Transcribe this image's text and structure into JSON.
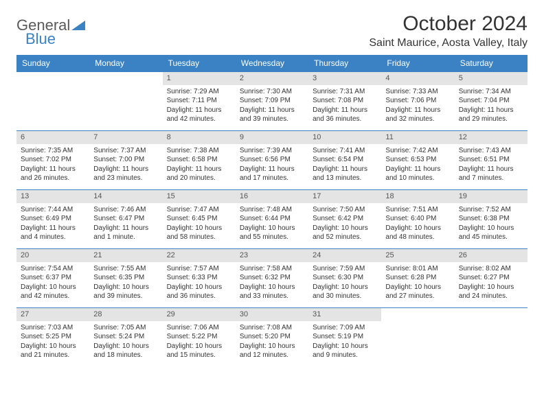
{
  "branding": {
    "word1": "General",
    "word2": "Blue"
  },
  "title": "October 2024",
  "location": "Saint Maurice, Aosta Valley, Italy",
  "colors": {
    "header_bg": "#3b82c4",
    "header_text": "#ffffff",
    "daynum_bg": "#e4e4e4",
    "daynum_text": "#555555",
    "row_border": "#3b82c4",
    "body_text": "#333333",
    "page_bg": "#ffffff",
    "logo_accent": "#3b82c4"
  },
  "typography": {
    "title_fontsize": 30,
    "location_fontsize": 16,
    "header_fontsize": 12,
    "daynum_fontsize": 11,
    "cell_fontsize": 10
  },
  "day_headers": [
    "Sunday",
    "Monday",
    "Tuesday",
    "Wednesday",
    "Thursday",
    "Friday",
    "Saturday"
  ],
  "weeks": [
    [
      {
        "empty": true
      },
      {
        "empty": true
      },
      {
        "num": "1",
        "sunrise": "Sunrise: 7:29 AM",
        "sunset": "Sunset: 7:11 PM",
        "daylight1": "Daylight: 11 hours",
        "daylight2": "and 42 minutes."
      },
      {
        "num": "2",
        "sunrise": "Sunrise: 7:30 AM",
        "sunset": "Sunset: 7:09 PM",
        "daylight1": "Daylight: 11 hours",
        "daylight2": "and 39 minutes."
      },
      {
        "num": "3",
        "sunrise": "Sunrise: 7:31 AM",
        "sunset": "Sunset: 7:08 PM",
        "daylight1": "Daylight: 11 hours",
        "daylight2": "and 36 minutes."
      },
      {
        "num": "4",
        "sunrise": "Sunrise: 7:33 AM",
        "sunset": "Sunset: 7:06 PM",
        "daylight1": "Daylight: 11 hours",
        "daylight2": "and 32 minutes."
      },
      {
        "num": "5",
        "sunrise": "Sunrise: 7:34 AM",
        "sunset": "Sunset: 7:04 PM",
        "daylight1": "Daylight: 11 hours",
        "daylight2": "and 29 minutes."
      }
    ],
    [
      {
        "num": "6",
        "sunrise": "Sunrise: 7:35 AM",
        "sunset": "Sunset: 7:02 PM",
        "daylight1": "Daylight: 11 hours",
        "daylight2": "and 26 minutes."
      },
      {
        "num": "7",
        "sunrise": "Sunrise: 7:37 AM",
        "sunset": "Sunset: 7:00 PM",
        "daylight1": "Daylight: 11 hours",
        "daylight2": "and 23 minutes."
      },
      {
        "num": "8",
        "sunrise": "Sunrise: 7:38 AM",
        "sunset": "Sunset: 6:58 PM",
        "daylight1": "Daylight: 11 hours",
        "daylight2": "and 20 minutes."
      },
      {
        "num": "9",
        "sunrise": "Sunrise: 7:39 AM",
        "sunset": "Sunset: 6:56 PM",
        "daylight1": "Daylight: 11 hours",
        "daylight2": "and 17 minutes."
      },
      {
        "num": "10",
        "sunrise": "Sunrise: 7:41 AM",
        "sunset": "Sunset: 6:54 PM",
        "daylight1": "Daylight: 11 hours",
        "daylight2": "and 13 minutes."
      },
      {
        "num": "11",
        "sunrise": "Sunrise: 7:42 AM",
        "sunset": "Sunset: 6:53 PM",
        "daylight1": "Daylight: 11 hours",
        "daylight2": "and 10 minutes."
      },
      {
        "num": "12",
        "sunrise": "Sunrise: 7:43 AM",
        "sunset": "Sunset: 6:51 PM",
        "daylight1": "Daylight: 11 hours",
        "daylight2": "and 7 minutes."
      }
    ],
    [
      {
        "num": "13",
        "sunrise": "Sunrise: 7:44 AM",
        "sunset": "Sunset: 6:49 PM",
        "daylight1": "Daylight: 11 hours",
        "daylight2": "and 4 minutes."
      },
      {
        "num": "14",
        "sunrise": "Sunrise: 7:46 AM",
        "sunset": "Sunset: 6:47 PM",
        "daylight1": "Daylight: 11 hours",
        "daylight2": "and 1 minute."
      },
      {
        "num": "15",
        "sunrise": "Sunrise: 7:47 AM",
        "sunset": "Sunset: 6:45 PM",
        "daylight1": "Daylight: 10 hours",
        "daylight2": "and 58 minutes."
      },
      {
        "num": "16",
        "sunrise": "Sunrise: 7:48 AM",
        "sunset": "Sunset: 6:44 PM",
        "daylight1": "Daylight: 10 hours",
        "daylight2": "and 55 minutes."
      },
      {
        "num": "17",
        "sunrise": "Sunrise: 7:50 AM",
        "sunset": "Sunset: 6:42 PM",
        "daylight1": "Daylight: 10 hours",
        "daylight2": "and 52 minutes."
      },
      {
        "num": "18",
        "sunrise": "Sunrise: 7:51 AM",
        "sunset": "Sunset: 6:40 PM",
        "daylight1": "Daylight: 10 hours",
        "daylight2": "and 48 minutes."
      },
      {
        "num": "19",
        "sunrise": "Sunrise: 7:52 AM",
        "sunset": "Sunset: 6:38 PM",
        "daylight1": "Daylight: 10 hours",
        "daylight2": "and 45 minutes."
      }
    ],
    [
      {
        "num": "20",
        "sunrise": "Sunrise: 7:54 AM",
        "sunset": "Sunset: 6:37 PM",
        "daylight1": "Daylight: 10 hours",
        "daylight2": "and 42 minutes."
      },
      {
        "num": "21",
        "sunrise": "Sunrise: 7:55 AM",
        "sunset": "Sunset: 6:35 PM",
        "daylight1": "Daylight: 10 hours",
        "daylight2": "and 39 minutes."
      },
      {
        "num": "22",
        "sunrise": "Sunrise: 7:57 AM",
        "sunset": "Sunset: 6:33 PM",
        "daylight1": "Daylight: 10 hours",
        "daylight2": "and 36 minutes."
      },
      {
        "num": "23",
        "sunrise": "Sunrise: 7:58 AM",
        "sunset": "Sunset: 6:32 PM",
        "daylight1": "Daylight: 10 hours",
        "daylight2": "and 33 minutes."
      },
      {
        "num": "24",
        "sunrise": "Sunrise: 7:59 AM",
        "sunset": "Sunset: 6:30 PM",
        "daylight1": "Daylight: 10 hours",
        "daylight2": "and 30 minutes."
      },
      {
        "num": "25",
        "sunrise": "Sunrise: 8:01 AM",
        "sunset": "Sunset: 6:28 PM",
        "daylight1": "Daylight: 10 hours",
        "daylight2": "and 27 minutes."
      },
      {
        "num": "26",
        "sunrise": "Sunrise: 8:02 AM",
        "sunset": "Sunset: 6:27 PM",
        "daylight1": "Daylight: 10 hours",
        "daylight2": "and 24 minutes."
      }
    ],
    [
      {
        "num": "27",
        "sunrise": "Sunrise: 7:03 AM",
        "sunset": "Sunset: 5:25 PM",
        "daylight1": "Daylight: 10 hours",
        "daylight2": "and 21 minutes."
      },
      {
        "num": "28",
        "sunrise": "Sunrise: 7:05 AM",
        "sunset": "Sunset: 5:24 PM",
        "daylight1": "Daylight: 10 hours",
        "daylight2": "and 18 minutes."
      },
      {
        "num": "29",
        "sunrise": "Sunrise: 7:06 AM",
        "sunset": "Sunset: 5:22 PM",
        "daylight1": "Daylight: 10 hours",
        "daylight2": "and 15 minutes."
      },
      {
        "num": "30",
        "sunrise": "Sunrise: 7:08 AM",
        "sunset": "Sunset: 5:20 PM",
        "daylight1": "Daylight: 10 hours",
        "daylight2": "and 12 minutes."
      },
      {
        "num": "31",
        "sunrise": "Sunrise: 7:09 AM",
        "sunset": "Sunset: 5:19 PM",
        "daylight1": "Daylight: 10 hours",
        "daylight2": "and 9 minutes."
      },
      {
        "empty": true
      },
      {
        "empty": true
      }
    ]
  ]
}
